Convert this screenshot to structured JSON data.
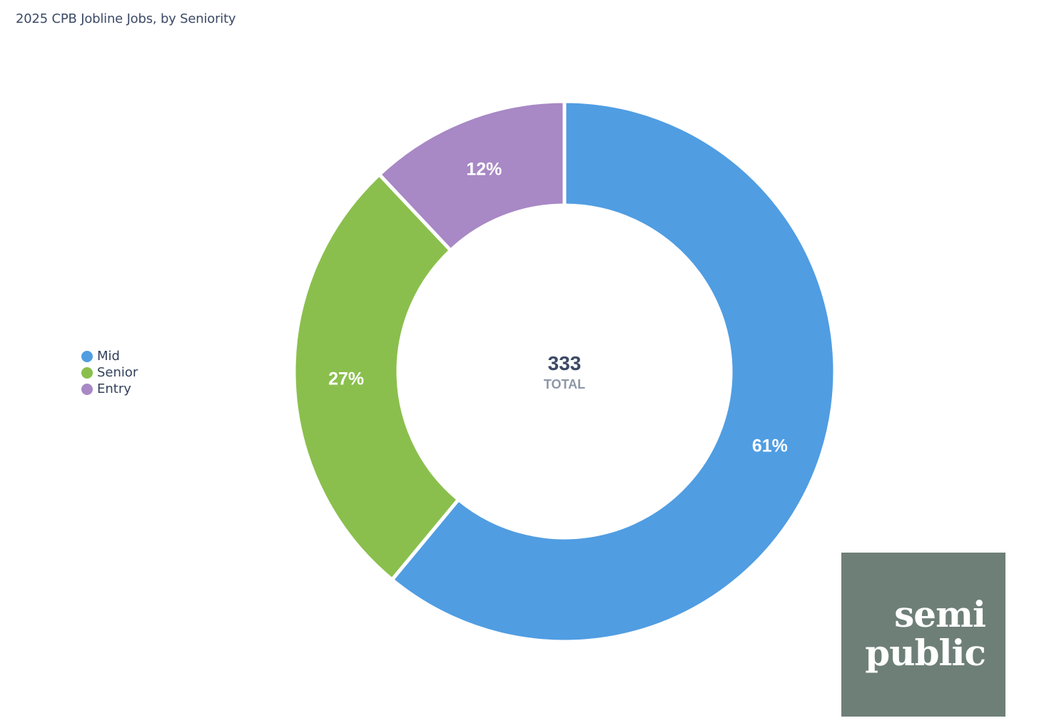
{
  "title": "2025 CPB Jobline Jobs, by Seniority",
  "chart_data": {
    "type": "pie",
    "title": "2025 CPB Jobline Jobs, by Seniority",
    "donut": true,
    "center": {
      "value": "333",
      "label": "TOTAL"
    },
    "legend_position": "left",
    "slices": [
      {
        "name": "Mid",
        "percent": 61,
        "label": "61%",
        "color": "#509de2"
      },
      {
        "name": "Senior",
        "percent": 27,
        "label": "27%",
        "color": "#8abf4d"
      },
      {
        "name": "Entry",
        "percent": 12,
        "label": "12%",
        "color": "#a888c5"
      }
    ]
  },
  "legend": [
    {
      "label": "Mid",
      "color": "#509de2"
    },
    {
      "label": "Senior",
      "color": "#8abf4d"
    },
    {
      "label": "Entry",
      "color": "#a888c5"
    }
  ],
  "logo": {
    "line1": "semi",
    "line2": "public",
    "background": "#6e7f78"
  }
}
